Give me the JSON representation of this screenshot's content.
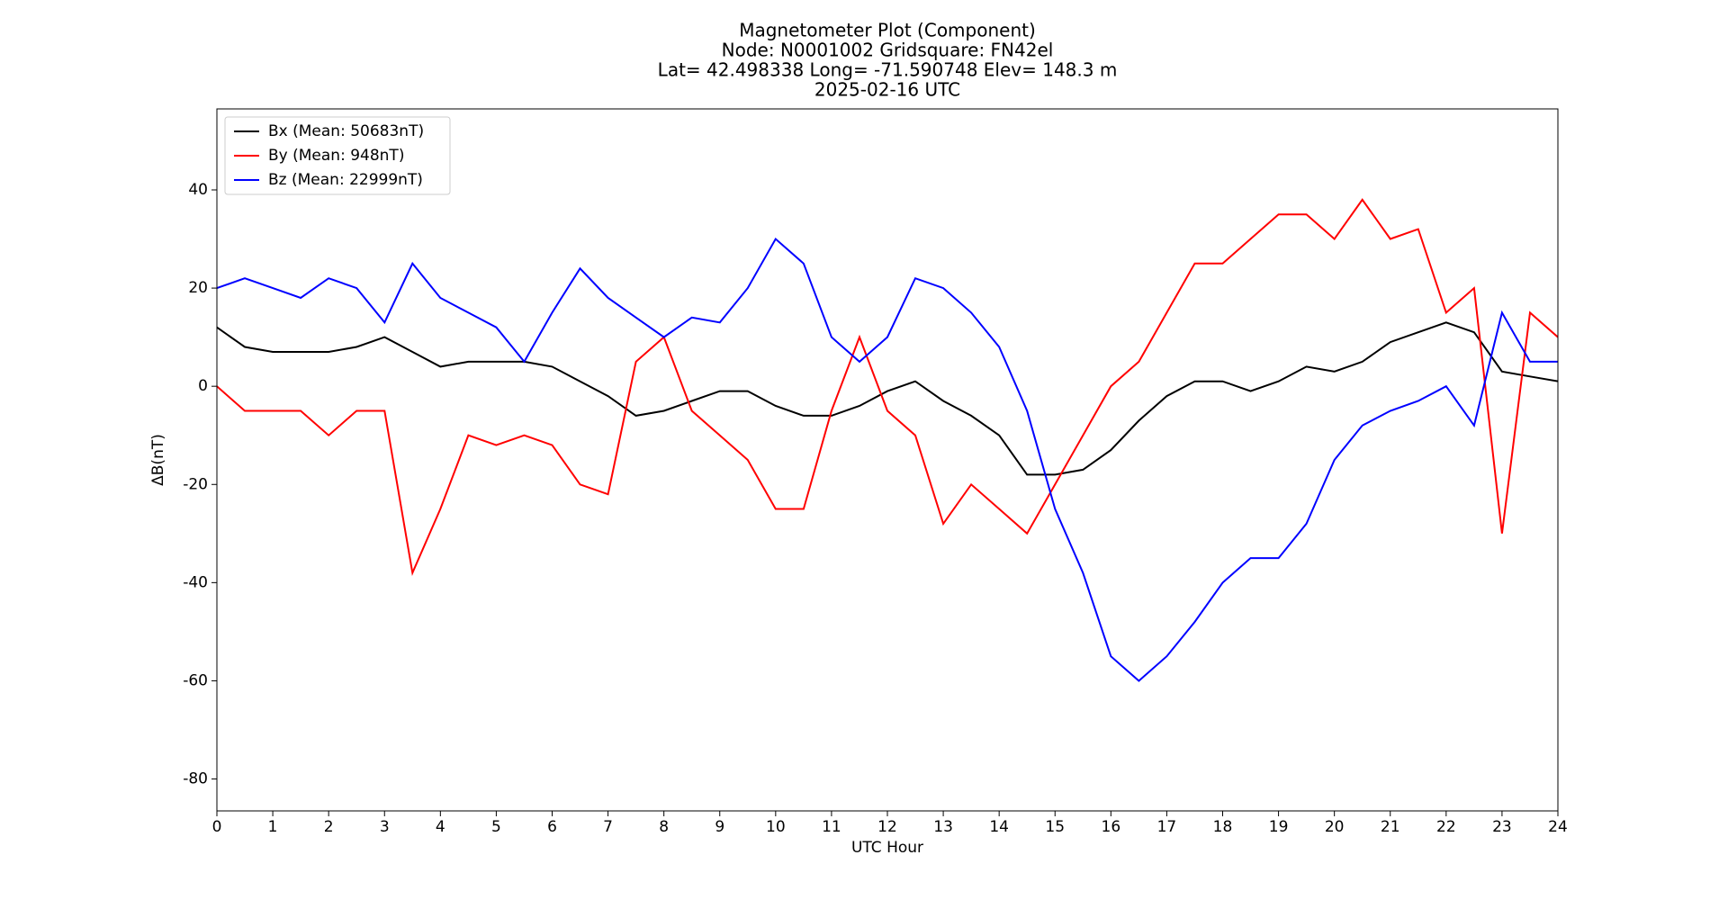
{
  "chart_data": {
    "type": "line",
    "title": [
      "Magnetometer Plot (Component)",
      "Node:  N0001002     Gridsquare:  FN42el",
      "Lat= 42.498338    Long= -71.590748    Elev= 148.3 m",
      "2025-02-16  UTC"
    ],
    "x_label": "UTC Hour",
    "y_label": "ΔB(nT)",
    "x": [
      0,
      0.5,
      1,
      1.5,
      2,
      2.5,
      3,
      3.5,
      4,
      4.5,
      5,
      5.5,
      6,
      6.5,
      7,
      7.5,
      8,
      8.5,
      9,
      9.5,
      10,
      10.5,
      11,
      11.5,
      12,
      12.5,
      13,
      13.5,
      14,
      14.5,
      15,
      15.5,
      16,
      16.5,
      17,
      17.5,
      18,
      18.5,
      19,
      19.5,
      20,
      20.5,
      21,
      21.5,
      22,
      22.5,
      23,
      23.5,
      24
    ],
    "series": [
      {
        "name": "Bx (Mean: 50683nT)",
        "color": "#000000",
        "values": [
          12,
          8,
          7,
          7,
          7,
          8,
          10,
          7,
          4,
          5,
          5,
          5,
          4,
          1,
          -2,
          -6,
          -5,
          -3,
          -1,
          -1,
          -4,
          -6,
          -6,
          -4,
          -1,
          1,
          -3,
          -6,
          -10,
          -18,
          -18,
          -17,
          -13,
          -7,
          -2,
          1,
          1,
          -1,
          1,
          4,
          3,
          5,
          9,
          11,
          13,
          11,
          3,
          2,
          1
        ]
      },
      {
        "name": "By (Mean: 948nT)",
        "color": "#ff0000",
        "values": [
          0,
          -5,
          -5,
          -5,
          -10,
          -5,
          -5,
          -38,
          -25,
          -10,
          -12,
          -10,
          -12,
          -20,
          -22,
          5,
          10,
          -5,
          -10,
          -15,
          -25,
          -25,
          -5,
          10,
          -5,
          -10,
          -28,
          -20,
          -25,
          -30,
          -20,
          -10,
          0,
          5,
          15,
          25,
          25,
          30,
          35,
          35,
          30,
          38,
          30,
          32,
          15,
          20,
          -30,
          15,
          10
        ]
      },
      {
        "name": "Bz (Mean: 22999nT)",
        "color": "#0000ff",
        "values": [
          20,
          22,
          20,
          18,
          22,
          20,
          13,
          25,
          18,
          15,
          12,
          5,
          15,
          24,
          18,
          14,
          10,
          14,
          13,
          20,
          30,
          25,
          10,
          5,
          10,
          22,
          20,
          15,
          8,
          -5,
          -25,
          -38,
          -55,
          -60,
          -55,
          -48,
          -40,
          -35,
          -35,
          -28,
          -15,
          -8,
          -5,
          -3,
          0,
          -8,
          15,
          5,
          5
        ]
      }
    ],
    "xlim": [
      0,
      24
    ],
    "xticks": [
      0,
      1,
      2,
      3,
      4,
      5,
      6,
      7,
      8,
      9,
      10,
      11,
      12,
      13,
      14,
      15,
      16,
      17,
      18,
      19,
      20,
      21,
      22,
      23,
      24
    ],
    "ylim": [
      -86.5,
      56.5
    ],
    "yticks": [
      -80,
      -60,
      -40,
      -20,
      0,
      20,
      40
    ],
    "legend": "upper left",
    "grid": false
  }
}
